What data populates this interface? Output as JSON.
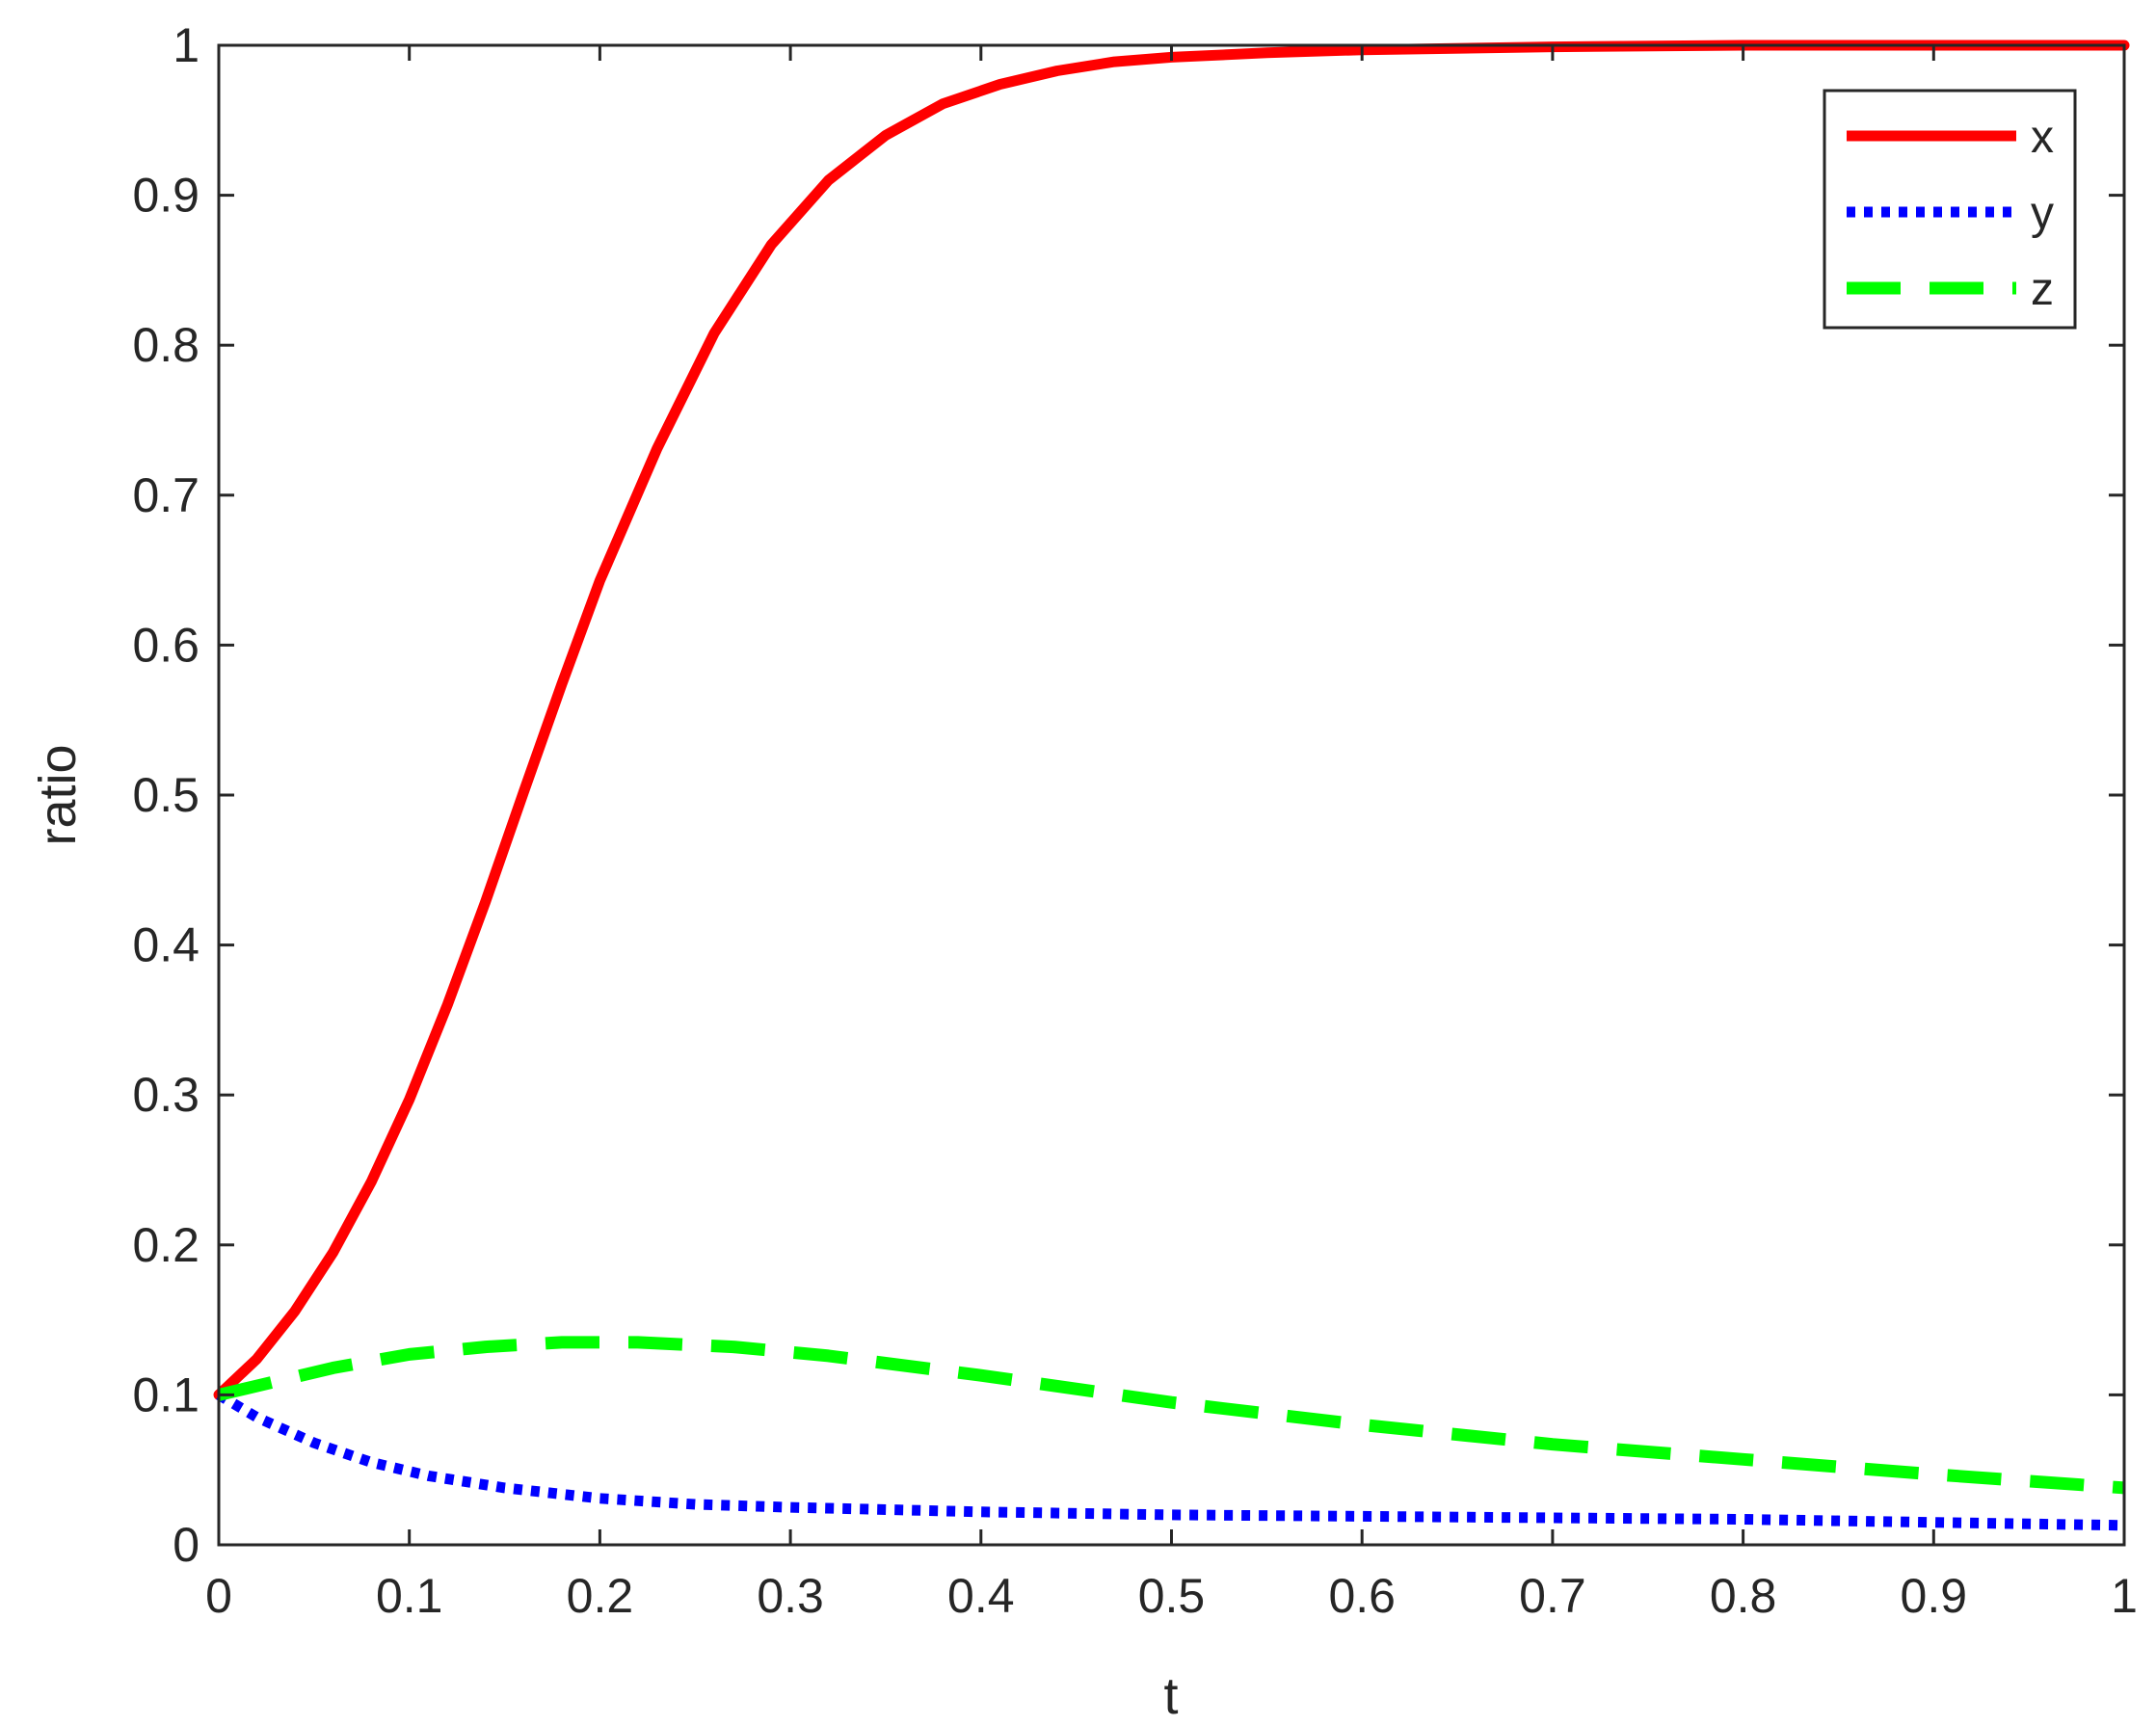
{
  "chart_data": {
    "type": "line",
    "title": "",
    "xlabel": "t",
    "ylabel": "ratio",
    "xlim": [
      0,
      1
    ],
    "ylim": [
      0,
      1
    ],
    "xticks": [
      "0",
      "0.1",
      "0.2",
      "0.3",
      "0.4",
      "0.5",
      "0.6",
      "0.7",
      "0.8",
      "0.9",
      "1"
    ],
    "yticks": [
      "0",
      "0.1",
      "0.2",
      "0.3",
      "0.4",
      "0.5",
      "0.6",
      "0.7",
      "0.8",
      "0.9",
      "1"
    ],
    "grid": false,
    "legend_position": "top-right",
    "series": [
      {
        "name": "x",
        "color": "#ff0000",
        "style": "solid",
        "x": [
          0,
          0.02,
          0.04,
          0.06,
          0.08,
          0.1,
          0.12,
          0.14,
          0.16,
          0.18,
          0.2,
          0.23,
          0.26,
          0.29,
          0.32,
          0.35,
          0.38,
          0.41,
          0.44,
          0.47,
          0.5,
          0.55,
          0.6,
          0.7,
          0.8,
          0.9,
          1.0
        ],
        "y": [
          0.1,
          0.124,
          0.156,
          0.195,
          0.242,
          0.297,
          0.36,
          0.429,
          0.502,
          0.574,
          0.643,
          0.731,
          0.808,
          0.867,
          0.91,
          0.94,
          0.961,
          0.974,
          0.983,
          0.989,
          0.992,
          0.995,
          0.997,
          0.999,
          1.0,
          1.0,
          1.0
        ]
      },
      {
        "name": "y",
        "color": "#0000ff",
        "style": "dotted",
        "x": [
          0,
          0.02,
          0.05,
          0.08,
          0.11,
          0.15,
          0.2,
          0.25,
          0.3,
          0.4,
          0.5,
          0.6,
          0.7,
          0.8,
          0.9,
          1.0
        ],
        "y": [
          0.1,
          0.085,
          0.068,
          0.055,
          0.046,
          0.038,
          0.031,
          0.027,
          0.025,
          0.022,
          0.02,
          0.019,
          0.018,
          0.017,
          0.015,
          0.013
        ]
      },
      {
        "name": "z",
        "color": "#00ff00",
        "style": "dashed",
        "x": [
          0,
          0.03,
          0.06,
          0.1,
          0.14,
          0.18,
          0.22,
          0.27,
          0.32,
          0.4,
          0.5,
          0.6,
          0.7,
          0.8,
          0.9,
          1.0
        ],
        "y": [
          0.1,
          0.109,
          0.118,
          0.127,
          0.132,
          0.135,
          0.135,
          0.132,
          0.126,
          0.113,
          0.095,
          0.08,
          0.067,
          0.057,
          0.047,
          0.038
        ]
      }
    ]
  }
}
